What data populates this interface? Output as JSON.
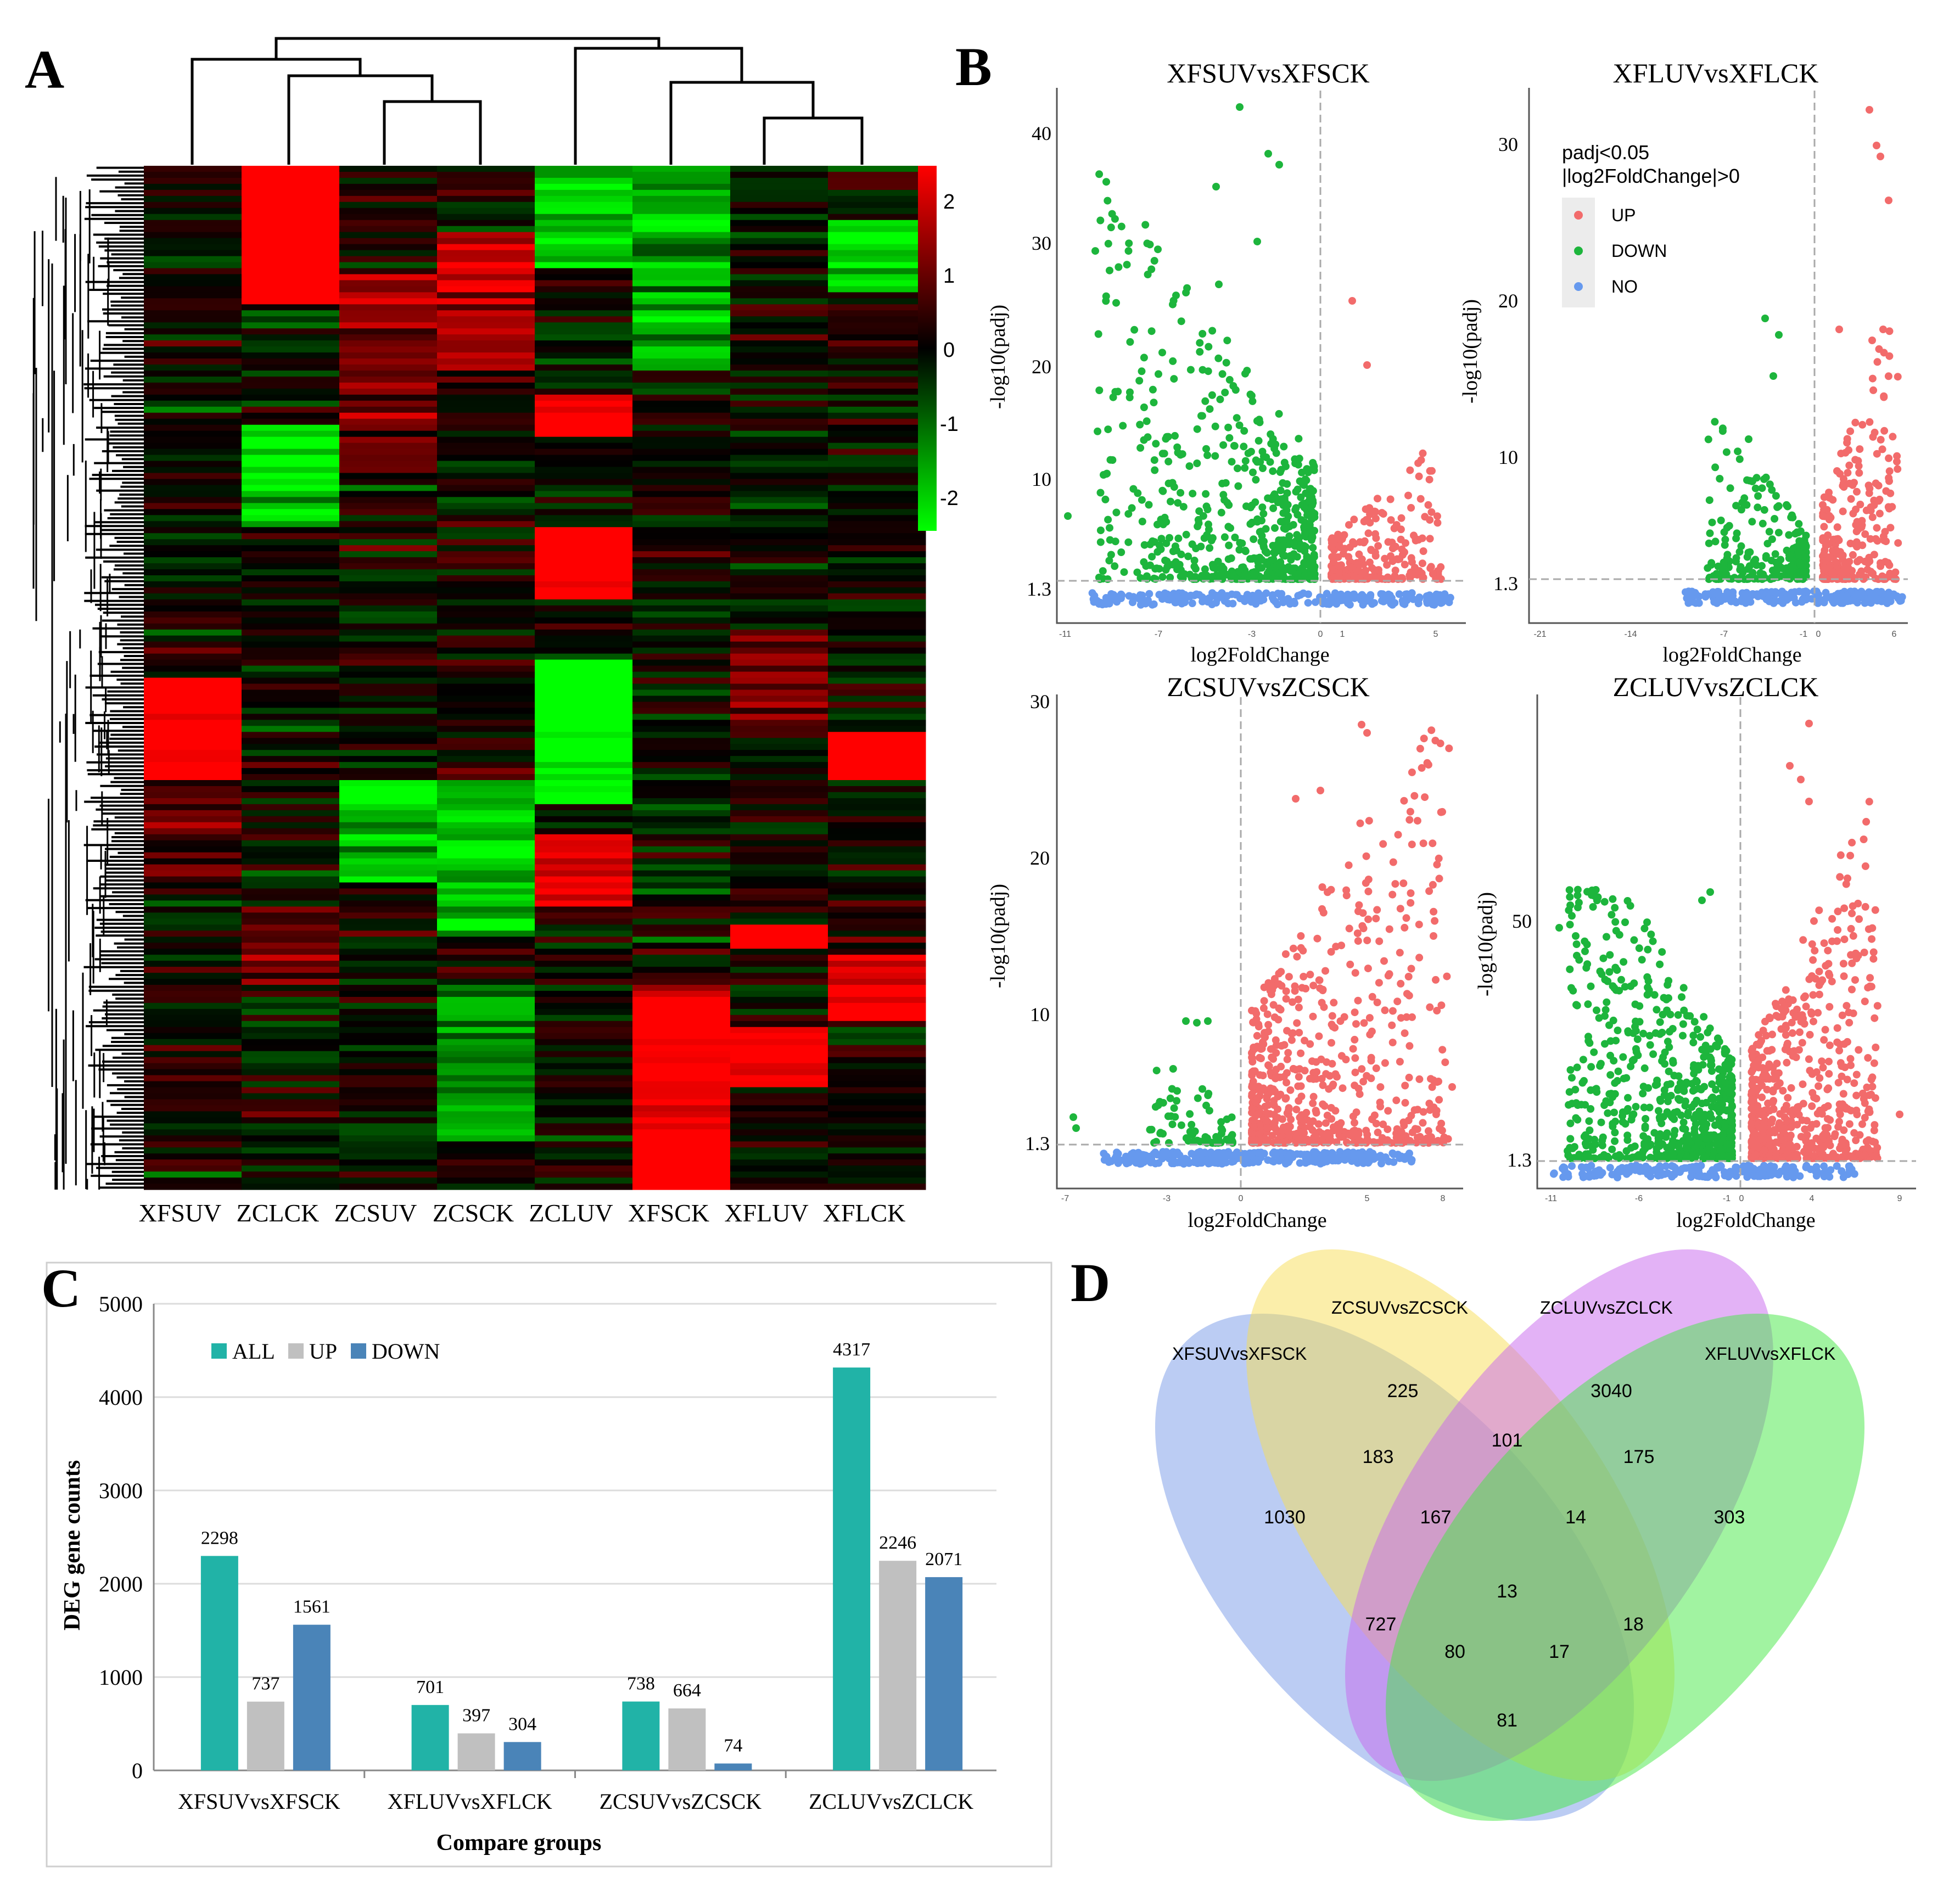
{
  "panel_labels": {
    "a": "A",
    "b": "B",
    "c": "C",
    "d": "D"
  },
  "heatmap": {
    "samples": [
      "XFSUV",
      "ZCLCK",
      "ZCSUV",
      "ZCSCK",
      "ZCLUV",
      "XFSCK",
      "XFLUV",
      "XFLCK"
    ],
    "colorbar_ticks": [
      "2",
      "1",
      "0",
      "-1",
      "-2"
    ],
    "colors": {
      "low": "#00ff00",
      "mid": "#000000",
      "high": "#ff0000"
    }
  },
  "volcano": {
    "xlabel": "log2FoldChange",
    "ylabel": "-log10(padj)",
    "legend": {
      "title1": "padj<0.05",
      "title2": "|log2FoldChange|>0",
      "up": "UP",
      "down": "DOWN",
      "no": "NO"
    },
    "colors": {
      "up": "#f26b6b",
      "down": "#1db53c",
      "no": "#6699ee"
    },
    "plots": [
      {
        "title": "XFSUVvsXFSCK",
        "yticks": [
          "40",
          "30",
          "20",
          "10",
          "1.3"
        ],
        "xticks": [
          "-11",
          "-7",
          "-3",
          "0",
          "1",
          "5"
        ]
      },
      {
        "title": "XFLUVvsXFLCK",
        "yticks": [
          "30",
          "20",
          "10",
          "1.3"
        ],
        "xticks": [
          "-21",
          "-14",
          "-7",
          "-1",
          "0",
          "6"
        ]
      },
      {
        "title": "ZCSUVvsZCSCK",
        "yticks": [
          "30",
          "20",
          "10",
          "1.3"
        ],
        "xticks": [
          "-7",
          "-3",
          "0",
          "5",
          "8"
        ]
      },
      {
        "title": "ZCLUVvsZCLCK",
        "yticks": [
          "50",
          "1.3"
        ],
        "xticks": [
          "-11",
          "-6",
          "-1",
          "0",
          "4",
          "9"
        ]
      }
    ]
  },
  "chart_data": {
    "type": "bar",
    "title": "",
    "xlabel": "Compare groups",
    "ylabel": "DEG gene counts",
    "ylim": [
      0,
      5000
    ],
    "yticks": [
      "0",
      "1000",
      "2000",
      "3000",
      "4000",
      "5000"
    ],
    "categories": [
      "XFSUVvsXFSCK",
      "XFLUVvsXFLCK",
      "ZCSUVvsZCSCK",
      "ZCLUVvsZCLCK"
    ],
    "series": [
      {
        "name": "ALL",
        "color": "#21b3a7",
        "values": [
          2298,
          701,
          738,
          4317
        ]
      },
      {
        "name": "UP",
        "color": "#c0c0c0",
        "values": [
          737,
          397,
          664,
          2246
        ]
      },
      {
        "name": "DOWN",
        "color": "#4a84b8",
        "values": [
          1561,
          304,
          74,
          2071
        ]
      }
    ],
    "legend_position": "top-left"
  },
  "venn": {
    "sets": [
      "XFSUVvsXFSCK",
      "ZCSUVvsZCSCK",
      "ZCLUVvsZCLCK",
      "XFLUVvsXFLCK"
    ],
    "colors": [
      "#7799e8",
      "#f7dd55",
      "#c866ee",
      "#44e844"
    ],
    "regions": {
      "a": "1030",
      "b": "225",
      "c": "3040",
      "d": "303",
      "ab": "183",
      "bc": "101",
      "cd": "175",
      "abc": "167",
      "bcd": "14",
      "abcd": "13",
      "ac": "727",
      "acd": "80",
      "abd": "17",
      "bd": "18",
      "ad": "81"
    }
  }
}
